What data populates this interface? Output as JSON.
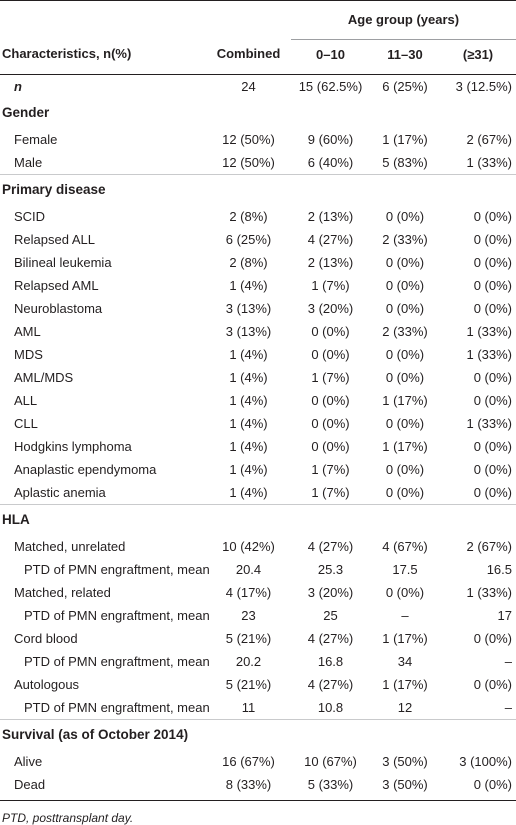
{
  "header": {
    "age_group": "Age group (years)",
    "characteristics": "Characteristics, n(%)",
    "columns": [
      "Combined",
      "0–10",
      "11–30",
      "(≥31)"
    ]
  },
  "rows": {
    "n": {
      "label": "n",
      "values": [
        "24",
        "15 (62.5%)",
        "6 (25%)",
        "3 (12.5%)"
      ]
    },
    "gender": {
      "title": "Gender",
      "items": [
        {
          "label": "Female",
          "values": [
            "12 (50%)",
            "9 (60%)",
            "1 (17%)",
            "2 (67%)"
          ]
        },
        {
          "label": "Male",
          "values": [
            "12 (50%)",
            "6 (40%)",
            "5 (83%)",
            "1 (33%)"
          ]
        }
      ]
    },
    "disease": {
      "title": "Primary disease",
      "items": [
        {
          "label": "SCID",
          "values": [
            "2 (8%)",
            "2 (13%)",
            "0 (0%)",
            "0 (0%)"
          ]
        },
        {
          "label": "Relapsed ALL",
          "values": [
            "6 (25%)",
            "4 (27%)",
            "2 (33%)",
            "0 (0%)"
          ]
        },
        {
          "label": "Bilineal leukemia",
          "values": [
            "2 (8%)",
            "2 (13%)",
            "0 (0%)",
            "0 (0%)"
          ]
        },
        {
          "label": "Relapsed AML",
          "values": [
            "1 (4%)",
            "1 (7%)",
            "0 (0%)",
            "0 (0%)"
          ]
        },
        {
          "label": "Neuroblastoma",
          "values": [
            "3 (13%)",
            "3 (20%)",
            "0 (0%)",
            "0 (0%)"
          ]
        },
        {
          "label": "AML",
          "values": [
            "3 (13%)",
            "0 (0%)",
            "2 (33%)",
            "1 (33%)"
          ]
        },
        {
          "label": "MDS",
          "values": [
            "1 (4%)",
            "0 (0%)",
            "0 (0%)",
            "1 (33%)"
          ]
        },
        {
          "label": "AML/MDS",
          "values": [
            "1 (4%)",
            "1 (7%)",
            "0 (0%)",
            "0 (0%)"
          ]
        },
        {
          "label": "ALL",
          "values": [
            "1 (4%)",
            "0 (0%)",
            "1 (17%)",
            "0 (0%)"
          ]
        },
        {
          "label": "CLL",
          "values": [
            "1 (4%)",
            "0 (0%)",
            "0 (0%)",
            "1 (33%)"
          ]
        },
        {
          "label": "Hodgkins lymphoma",
          "values": [
            "1 (4%)",
            "0 (0%)",
            "1 (17%)",
            "0 (0%)"
          ]
        },
        {
          "label": "Anaplastic ependymoma",
          "values": [
            "1 (4%)",
            "1 (7%)",
            "0 (0%)",
            "0 (0%)"
          ]
        },
        {
          "label": "Aplastic anemia",
          "values": [
            "1 (4%)",
            "1 (7%)",
            "0 (0%)",
            "0 (0%)"
          ]
        }
      ]
    },
    "hla": {
      "title": "HLA",
      "items": [
        {
          "label": "Matched, unrelated",
          "values": [
            "10 (42%)",
            "4 (27%)",
            "4 (67%)",
            "2 (67%)"
          ],
          "sub": false
        },
        {
          "label": "PTD of PMN engraftment, mean",
          "values": [
            "20.4",
            "25.3",
            "17.5",
            "16.5"
          ],
          "sub": true
        },
        {
          "label": "Matched, related",
          "values": [
            "4 (17%)",
            "3 (20%)",
            "0 (0%)",
            "1 (33%)"
          ],
          "sub": false
        },
        {
          "label": "PTD of PMN engraftment, mean",
          "values": [
            "23",
            "25",
            "–",
            "17"
          ],
          "sub": true
        },
        {
          "label": "Cord blood",
          "values": [
            "5 (21%)",
            "4 (27%)",
            "1 (17%)",
            "0 (0%)"
          ],
          "sub": false
        },
        {
          "label": "PTD of PMN engraftment, mean",
          "values": [
            "20.2",
            "16.8",
            "34",
            "–"
          ],
          "sub": true
        },
        {
          "label": "Autologous",
          "values": [
            "5 (21%)",
            "4 (27%)",
            "1 (17%)",
            "0 (0%)"
          ],
          "sub": false
        },
        {
          "label": "PTD of PMN engraftment, mean",
          "values": [
            "11",
            "10.8",
            "12",
            "–"
          ],
          "sub": true
        }
      ]
    },
    "survival": {
      "title": "Survival (as of October 2014)",
      "items": [
        {
          "label": "Alive",
          "values": [
            "16 (67%)",
            "10 (67%)",
            "3 (50%)",
            "3 (100%)"
          ]
        },
        {
          "label": "Dead",
          "values": [
            "8 (33%)",
            "5 (33%)",
            "3 (50%)",
            "0 (0%)"
          ]
        }
      ]
    }
  },
  "footnote": "PTD, posttransplant day."
}
